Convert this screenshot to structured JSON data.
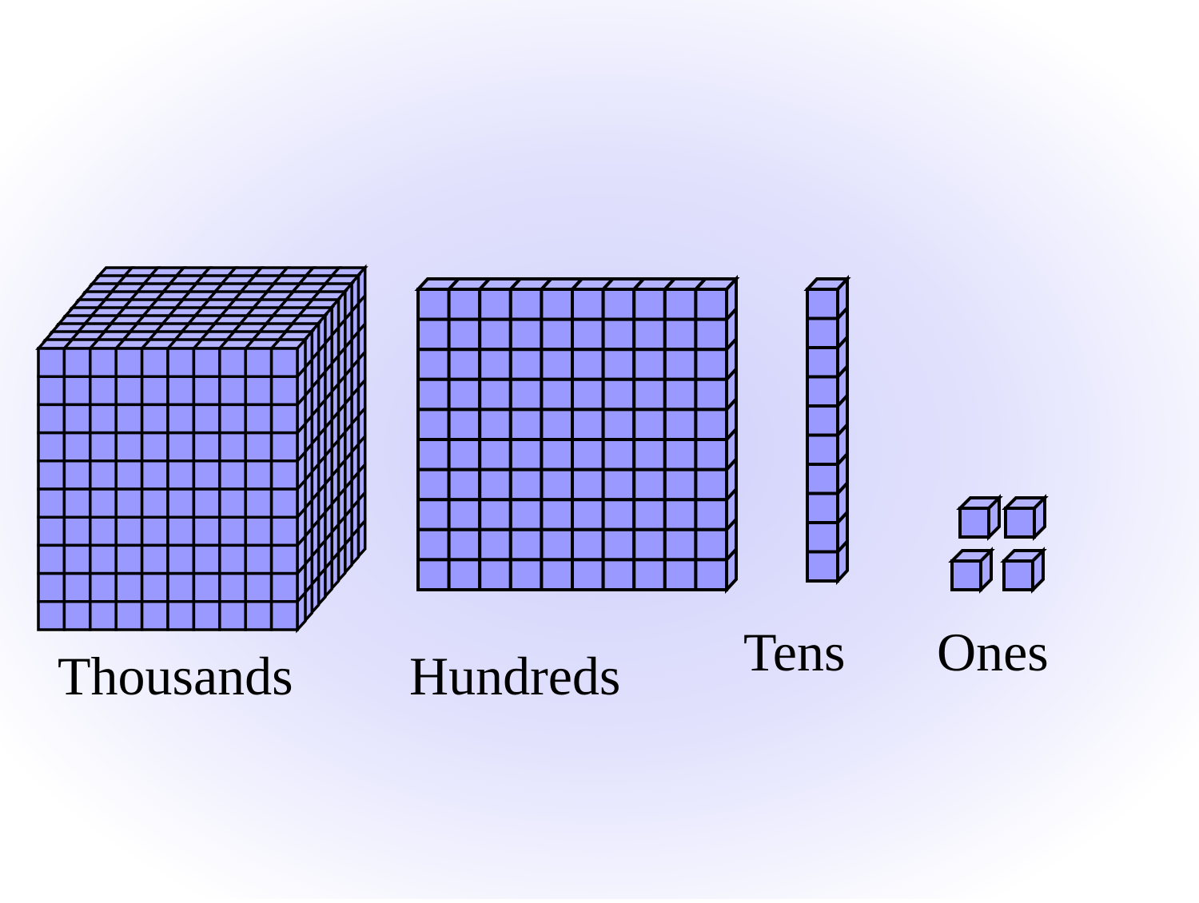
{
  "colors": {
    "cube_face": "#9999ff",
    "cube_side": "#a8a8ff",
    "cube_top": "#b3b3ff",
    "outline": "#000000",
    "glow_center": "#cfcffb",
    "background": "#ffffff"
  },
  "blocks": {
    "thousands": {
      "label": "Thousands",
      "columns": 10,
      "rows": 10,
      "layers": 10
    },
    "hundreds": {
      "label": "Hundreds",
      "columns": 10,
      "rows": 10,
      "layers": 1
    },
    "tens": {
      "label": "Tens",
      "columns": 1,
      "rows": 10,
      "layers": 1
    },
    "ones": {
      "label": "Ones",
      "count": 4
    }
  }
}
